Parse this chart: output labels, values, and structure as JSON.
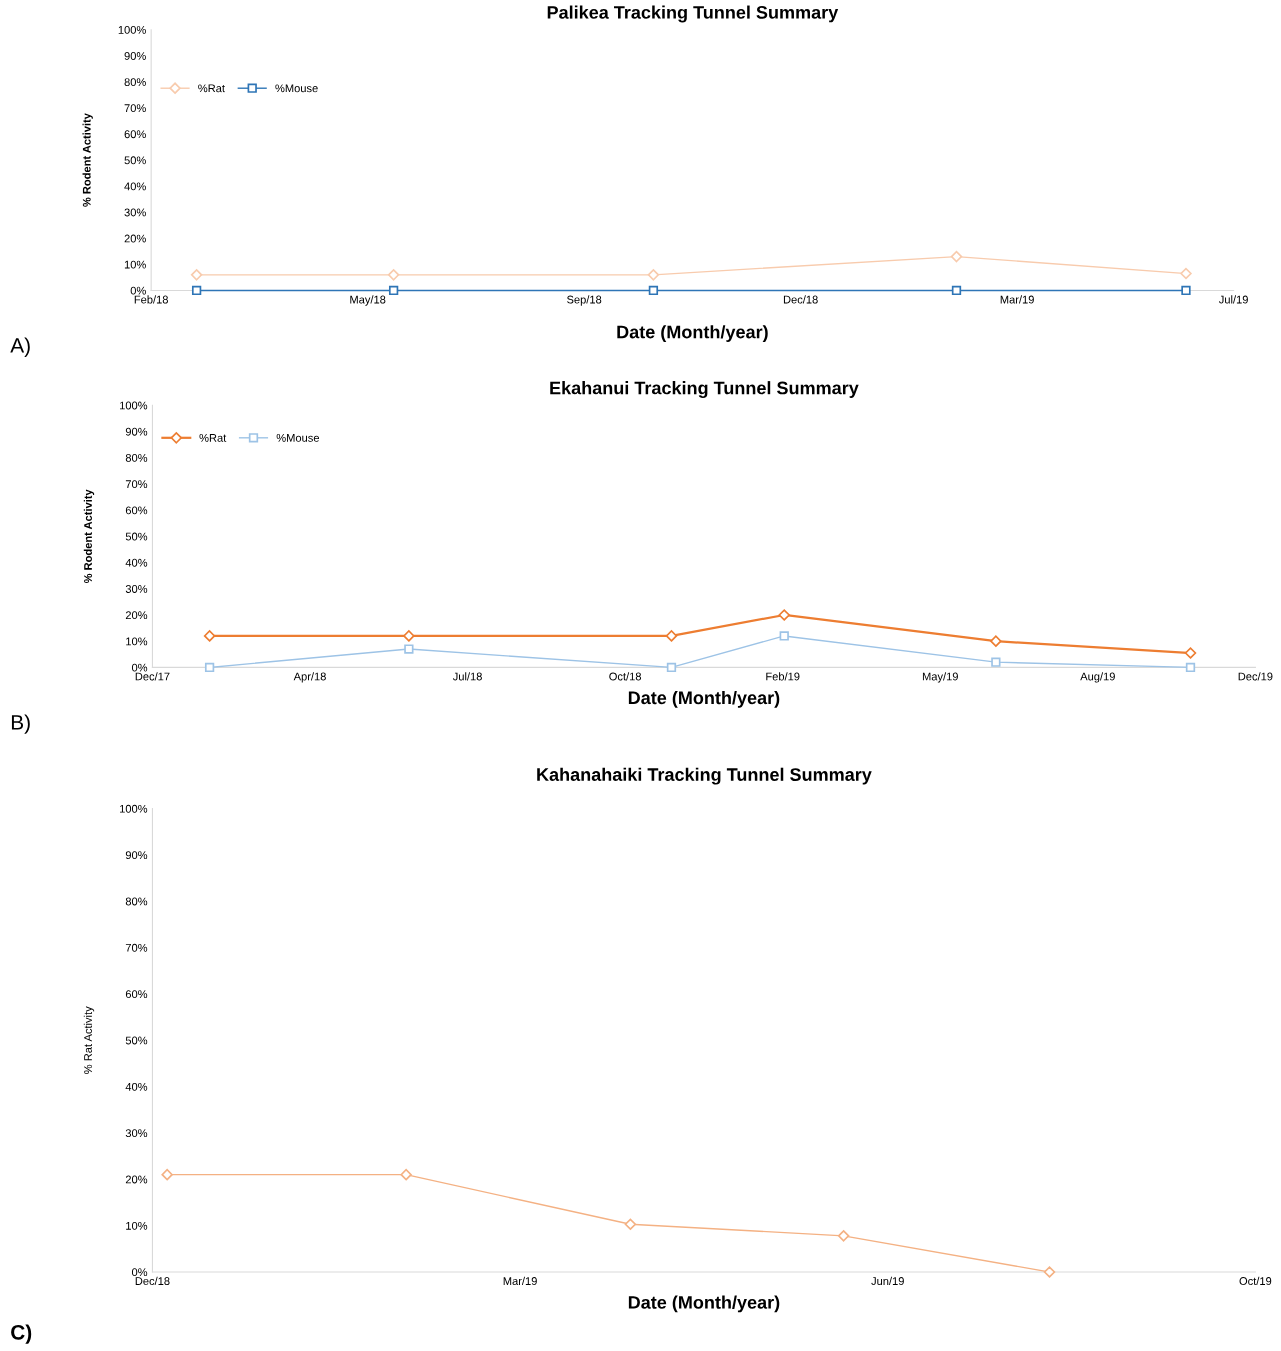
{
  "chart_data": [
    {
      "type": "line",
      "title": "Palikea Tracking Tunnel Summary",
      "xlabel": "Date (Month/year)",
      "ylabel": "% Rodent Activity",
      "annotations": [
        "A)"
      ],
      "xlim": [
        "2018-02-20",
        "2019-07-05"
      ],
      "xticks": [
        {
          "value": "2018-02-20",
          "label": "Feb/18"
        },
        {
          "value": "2018-05-31",
          "label": "May/18"
        },
        {
          "value": "2018-09-08",
          "label": "Sep/18"
        },
        {
          "value": "2018-12-17",
          "label": "Dec/18"
        },
        {
          "value": "2019-03-27",
          "label": "Mar/19"
        },
        {
          "value": "2019-07-05",
          "label": "Jul/19"
        }
      ],
      "ylim": [
        0,
        100
      ],
      "yticks": [
        {
          "value": 0,
          "label": "0%"
        },
        {
          "value": 10,
          "label": "10%"
        },
        {
          "value": 20,
          "label": "20%"
        },
        {
          "value": 30,
          "label": "30%"
        },
        {
          "value": 40,
          "label": "40%"
        },
        {
          "value": 50,
          "label": "50%"
        },
        {
          "value": 60,
          "label": "60%"
        },
        {
          "value": 70,
          "label": "70%"
        },
        {
          "value": 80,
          "label": "80%"
        },
        {
          "value": 90,
          "label": "90%"
        },
        {
          "value": 100,
          "label": "100%"
        }
      ],
      "x": [
        "2018-03-13",
        "2018-06-12",
        "2018-10-10",
        "2019-02-27",
        "2019-06-13"
      ],
      "series": [
        {
          "name": "%Rat",
          "color": "#f8cbad",
          "marker": "diamond",
          "values": [
            6,
            6,
            6,
            13,
            6.5
          ]
        },
        {
          "name": "%Mouse",
          "color": "#2e75b6",
          "marker": "square",
          "values": [
            0,
            0,
            0,
            0,
            0
          ]
        }
      ],
      "legend": "top left",
      "grid": false
    },
    {
      "type": "line",
      "title": "Ekahanui Tracking Tunnel Summary",
      "xlabel": "Date (Month/year)",
      "ylabel": "% Rodent Activity",
      "annotations": [
        "B)"
      ],
      "xlim": [
        "2017-12-25",
        "2019-12-09"
      ],
      "xticks": [
        {
          "value": "2017-12-25",
          "label": "Dec/17"
        },
        {
          "value": "2018-04-06",
          "label": "Apr/18"
        },
        {
          "value": "2018-07-17",
          "label": "Jul/18"
        },
        {
          "value": "2018-10-27",
          "label": "Oct/18"
        },
        {
          "value": "2019-02-06",
          "label": "Feb/19"
        },
        {
          "value": "2019-05-19",
          "label": "May/19"
        },
        {
          "value": "2019-08-29",
          "label": "Aug/19"
        },
        {
          "value": "2019-12-09",
          "label": "Dec/19"
        }
      ],
      "ylim": [
        0,
        100
      ],
      "yticks": [
        {
          "value": 0,
          "label": "0%"
        },
        {
          "value": 10,
          "label": "10%"
        },
        {
          "value": 20,
          "label": "20%"
        },
        {
          "value": 30,
          "label": "30%"
        },
        {
          "value": 40,
          "label": "40%"
        },
        {
          "value": 50,
          "label": "50%"
        },
        {
          "value": 60,
          "label": "60%"
        },
        {
          "value": 70,
          "label": "70%"
        },
        {
          "value": 80,
          "label": "80%"
        },
        {
          "value": 90,
          "label": "90%"
        },
        {
          "value": 100,
          "label": "100%"
        }
      ],
      "x": [
        "2018-01-31",
        "2018-06-09",
        "2018-11-26",
        "2019-02-07",
        "2019-06-24",
        "2019-10-28"
      ],
      "series": [
        {
          "name": "%Rat",
          "color": "#ed7d31",
          "marker": "diamond",
          "values": [
            12,
            12,
            12,
            20,
            10,
            5.5
          ]
        },
        {
          "name": "%Mouse",
          "color": "#9dc3e6",
          "marker": "square",
          "values": [
            0,
            7,
            0,
            12,
            2,
            0
          ]
        }
      ],
      "legend": "top left",
      "grid": false
    },
    {
      "type": "line",
      "title": "Kahanahaiki Tracking Tunnel Summary",
      "xlabel": "Date (Month/year)",
      "ylabel": "% Rat Activity",
      "annotations": [
        "C)"
      ],
      "xlim": [
        "2018-12-10",
        "2019-10-06"
      ],
      "xticks": [
        {
          "value": "2018-12-10",
          "label": "Dec/18"
        },
        {
          "value": "2019-03-20",
          "label": "Mar/19"
        },
        {
          "value": "2019-06-28",
          "label": "Jun/19"
        },
        {
          "value": "2019-10-06",
          "label": "Oct/19"
        }
      ],
      "ylim": [
        0,
        100
      ],
      "yticks": [
        {
          "value": 0,
          "label": "0%"
        },
        {
          "value": 10,
          "label": "10%"
        },
        {
          "value": 20,
          "label": "20%"
        },
        {
          "value": 30,
          "label": "30%"
        },
        {
          "value": 40,
          "label": "40%"
        },
        {
          "value": 50,
          "label": "50%"
        },
        {
          "value": 60,
          "label": "60%"
        },
        {
          "value": 70,
          "label": "70%"
        },
        {
          "value": 80,
          "label": "80%"
        },
        {
          "value": 90,
          "label": "90%"
        },
        {
          "value": 100,
          "label": "100%"
        }
      ],
      "x": [
        "2018-12-14",
        "2019-02-17",
        "2019-04-19",
        "2019-06-16",
        "2019-08-11"
      ],
      "series": [
        {
          "color": "#f4b183",
          "marker": "diamond",
          "values": [
            21,
            21,
            10.3,
            7.8,
            0
          ]
        }
      ],
      "legend": false,
      "grid": false
    }
  ]
}
